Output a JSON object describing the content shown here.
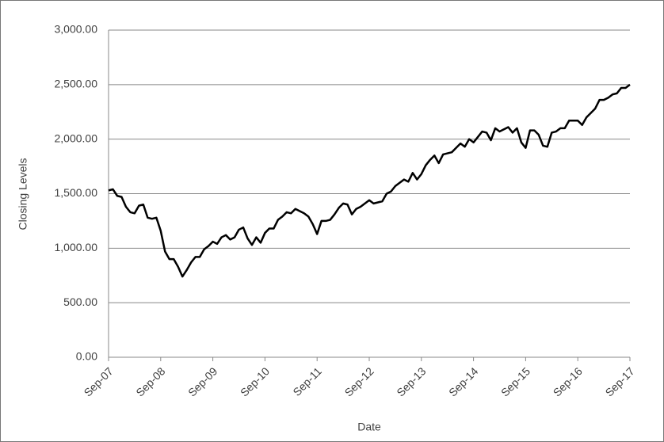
{
  "chart_data": {
    "type": "line",
    "x_label": "Date",
    "y_label": "Closing  Levels",
    "categories": [
      "Sep-07",
      null,
      null,
      null,
      null,
      null,
      null,
      null,
      null,
      null,
      null,
      null,
      "Sep-08",
      null,
      null,
      null,
      null,
      null,
      null,
      null,
      null,
      null,
      null,
      null,
      "Sep-09",
      null,
      null,
      null,
      null,
      null,
      null,
      null,
      null,
      null,
      null,
      null,
      "Sep-10",
      null,
      null,
      null,
      null,
      null,
      null,
      null,
      null,
      null,
      null,
      null,
      "Sep-11",
      null,
      null,
      null,
      null,
      null,
      null,
      null,
      null,
      null,
      null,
      null,
      "Sep-12",
      null,
      null,
      null,
      null,
      null,
      null,
      null,
      null,
      null,
      null,
      null,
      "Sep-13",
      null,
      null,
      null,
      null,
      null,
      null,
      null,
      null,
      null,
      null,
      null,
      "Sep-14",
      null,
      null,
      null,
      null,
      null,
      null,
      null,
      null,
      null,
      null,
      null,
      "Sep-15",
      null,
      null,
      null,
      null,
      null,
      null,
      null,
      null,
      null,
      null,
      null,
      "Sep-16",
      null,
      null,
      null,
      null,
      null,
      null,
      null,
      null,
      null,
      null,
      null,
      "Sep-17"
    ],
    "values": [
      1530,
      1540,
      1480,
      1470,
      1380,
      1330,
      1320,
      1390,
      1400,
      1280,
      1270,
      1280,
      1160,
      970,
      900,
      900,
      830,
      740,
      800,
      870,
      920,
      920,
      990,
      1020,
      1060,
      1040,
      1100,
      1120,
      1080,
      1100,
      1170,
      1190,
      1090,
      1030,
      1100,
      1050,
      1140,
      1180,
      1180,
      1260,
      1290,
      1330,
      1320,
      1360,
      1340,
      1320,
      1290,
      1220,
      1130,
      1250,
      1250,
      1260,
      1310,
      1370,
      1410,
      1400,
      1310,
      1360,
      1380,
      1410,
      1440,
      1410,
      1420,
      1430,
      1500,
      1520,
      1570,
      1600,
      1630,
      1610,
      1690,
      1630,
      1680,
      1760,
      1810,
      1850,
      1780,
      1860,
      1870,
      1880,
      1920,
      1960,
      1930,
      2000,
      1970,
      2020,
      2070,
      2060,
      1990,
      2100,
      2070,
      2090,
      2110,
      2060,
      2100,
      1970,
      1920,
      2080,
      2080,
      2040,
      1940,
      1930,
      2060,
      2070,
      2100,
      2100,
      2170,
      2170,
      2170,
      2130,
      2200,
      2240,
      2280,
      2360,
      2360,
      2380,
      2410,
      2420,
      2470,
      2470,
      2500
    ],
    "color": "#000000",
    "ylim": [
      0,
      3000
    ],
    "yticks": [
      {
        "value": 0,
        "label": "0.00"
      },
      {
        "value": 500,
        "label": "500.00"
      },
      {
        "value": 1000,
        "label": "1,000.00"
      },
      {
        "value": 1500,
        "label": "1,500.00"
      },
      {
        "value": 2000,
        "label": "2,000.00"
      },
      {
        "value": 2500,
        "label": "2,500.00"
      },
      {
        "value": 3000,
        "label": "3,000.00"
      }
    ],
    "grid": true
  }
}
